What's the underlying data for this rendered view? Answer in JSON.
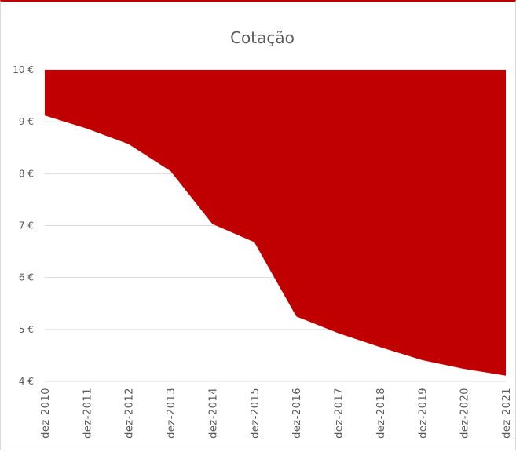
{
  "chart_data": {
    "type": "area",
    "title": "Cotação",
    "xlabel": "",
    "ylabel": "",
    "categories": [
      "dez-2010",
      "dez-2011",
      "dez-2012",
      "dez-2013",
      "dez-2014",
      "dez-2015",
      "dez-2016",
      "dez-2017",
      "dez-2018",
      "dez-2019",
      "dez-2020",
      "dez-2021"
    ],
    "series": [
      {
        "values": [
          9.12,
          8.87,
          8.57,
          8.05,
          7.03,
          6.68,
          5.25,
          4.93,
          4.66,
          4.41,
          4.24,
          4.11
        ]
      }
    ],
    "fill_region": "above-line",
    "fill_color": "#c00000",
    "ylim": [
      4,
      10
    ],
    "yticks": [
      4,
      5,
      6,
      7,
      8,
      9,
      10
    ],
    "ytick_labels": [
      "4 €",
      "5 €",
      "6 €",
      "7 €",
      "8 €",
      "9 €",
      "10 €"
    ],
    "grid": true,
    "legend": "none"
  }
}
